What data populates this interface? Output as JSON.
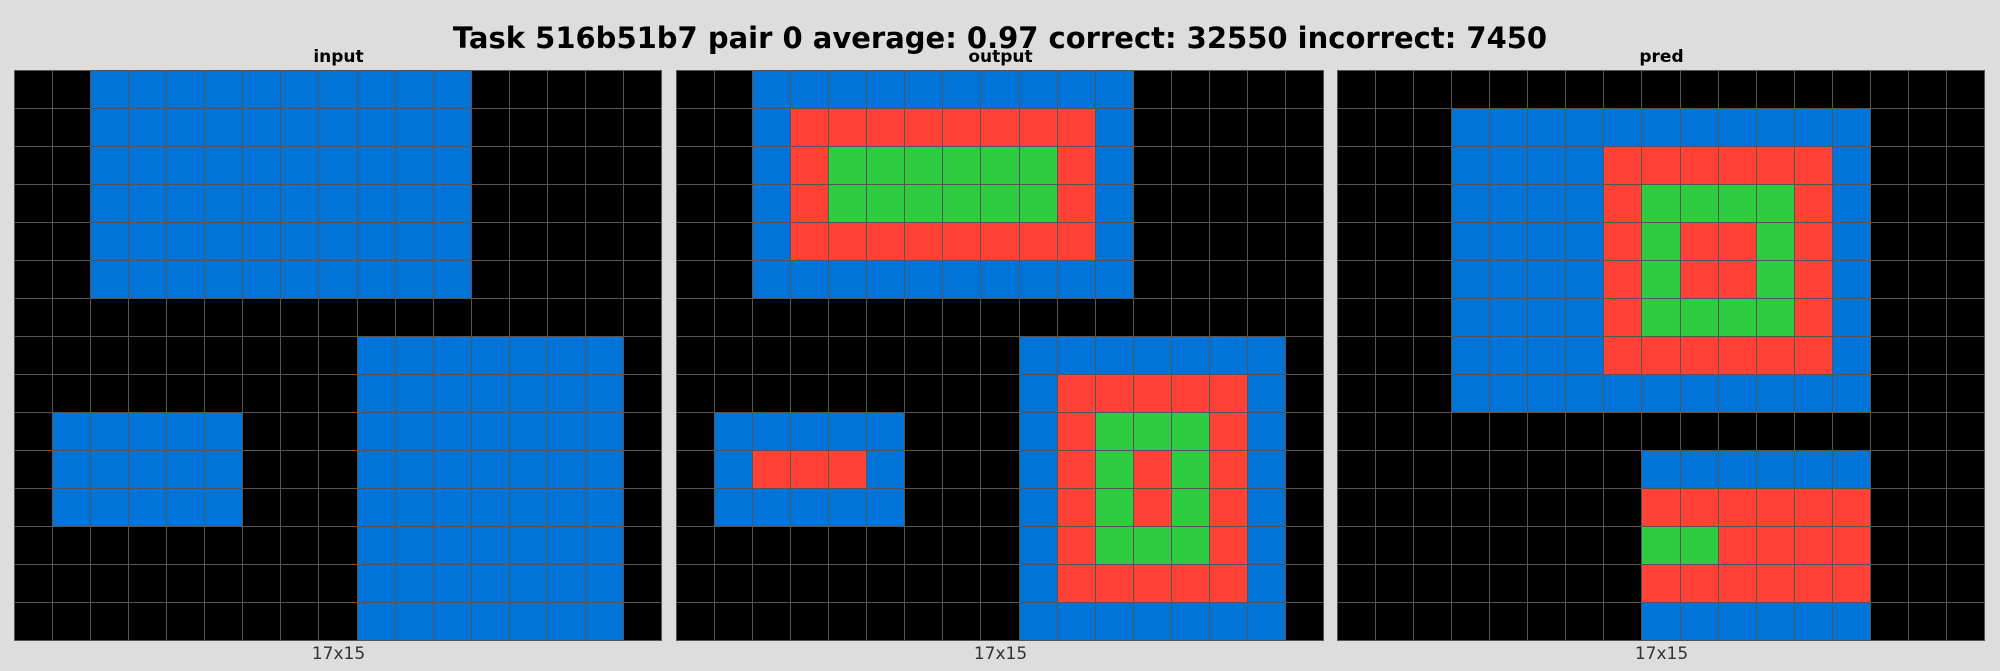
{
  "title": "Task 516b51b7 pair 0 average: 0.97 correct: 32550 incorrect: 7450",
  "palette": {
    "0": "#000000",
    "1": "#0074d9",
    "2": "#ff4136",
    "3": "#2ecc40"
  },
  "panels": [
    {
      "title": "input",
      "dims": "17x15",
      "grid": [
        "00111111111100000",
        "00111111111100000",
        "00111111111100000",
        "00111111111100000",
        "00111111111100000",
        "00111111111100000",
        "00000000000000000",
        "00000000011111110",
        "00000000011111110",
        "01111100011111110",
        "01111100011111110",
        "01111100011111110",
        "00000000011111110",
        "00000000011111110",
        "00000000011111110"
      ]
    },
    {
      "title": "output",
      "dims": "17x15",
      "grid": [
        "00111111111100000",
        "00122222222100000",
        "00123333332100000",
        "00123333332100000",
        "00122222222100000",
        "00111111111100000",
        "00000000000000000",
        "00000000011111110",
        "00000000012222210",
        "01111100012333210",
        "01222100012323210",
        "01111100012323210",
        "00000000012333210",
        "00000000012222210",
        "00000000011111110"
      ]
    },
    {
      "title": "pred",
      "dims": "17x15",
      "grid": [
        "00000000000000000",
        "00011111111111000",
        "00011112222221000",
        "00011112333321000",
        "00011112322321000",
        "00011112322321000",
        "00011112333321000",
        "00011112222221000",
        "00011111111111000",
        "00000000000000000",
        "00000000111111000",
        "00000000222222000",
        "00000000332222000",
        "00000000222222000",
        "00000000111111000"
      ]
    }
  ]
}
